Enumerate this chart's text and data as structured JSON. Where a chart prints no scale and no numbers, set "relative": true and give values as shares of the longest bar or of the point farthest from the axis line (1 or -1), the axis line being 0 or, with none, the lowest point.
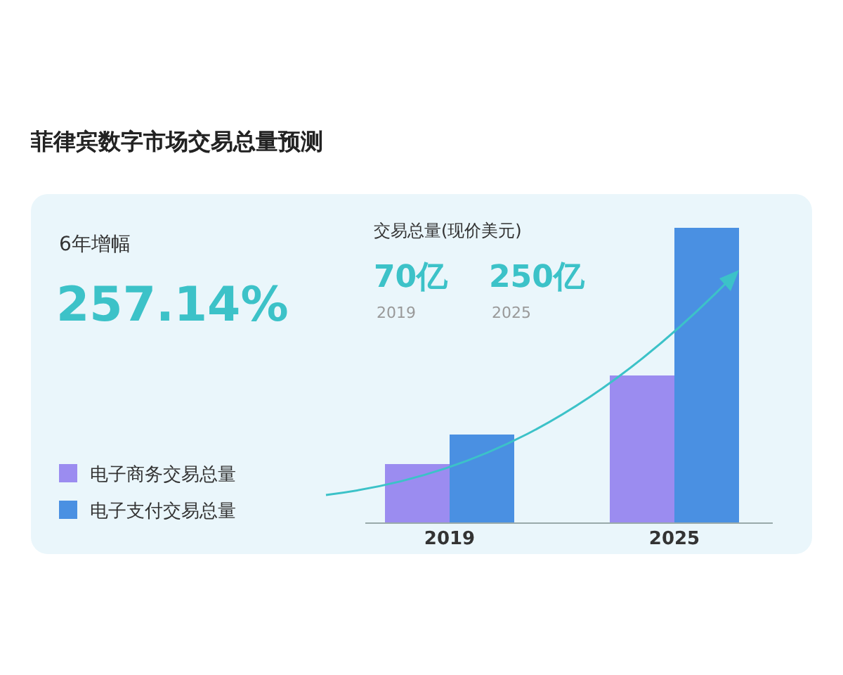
{
  "chart_data": {
    "type": "bar",
    "title": "菲律宾数字市场交易总量预测",
    "categories": [
      "2019",
      "2025"
    ],
    "relative": true,
    "legend": "bottom left",
    "series": [
      {
        "name": "电子商务交易总量",
        "color": "#9b8cf0",
        "values": [
          0.2,
          0.5
        ]
      },
      {
        "name": "电子支付交易总量",
        "color": "#4a90e2",
        "values": [
          0.3,
          1.0
        ]
      }
    ],
    "annotations": [
      "6年增幅",
      "257.14%",
      "交易总量(现价美元)",
      "70亿",
      "2019",
      "250亿",
      "2025"
    ]
  }
}
